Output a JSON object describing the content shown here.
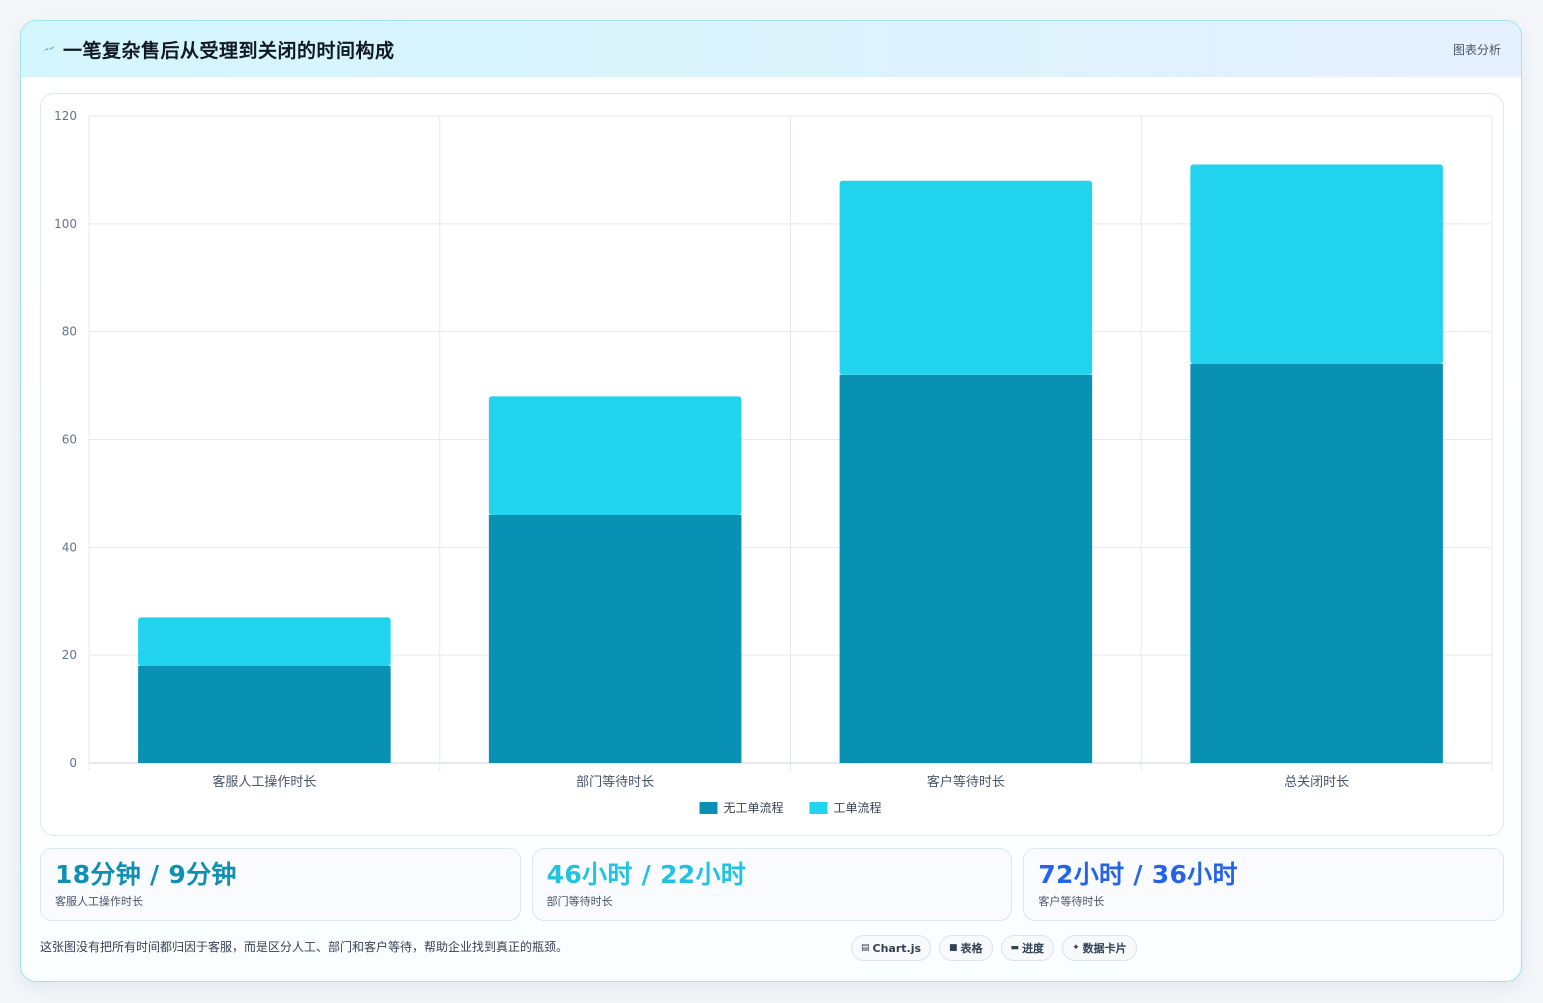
{
  "header": {
    "title": "一笔复杂售后从受理到关闭的时间构成",
    "tag": "图表分析"
  },
  "colors": {
    "series_dark": "#0891b2",
    "series_light": "#22d3ee",
    "stat1": "#0e8fb3",
    "stat2": "#22c3e0",
    "stat3": "#2563eb"
  },
  "chart_data": {
    "type": "bar",
    "stacked": true,
    "categories": [
      "客服人工操作时长",
      "部门等待时长",
      "客户等待时长",
      "总关闭时长"
    ],
    "series": [
      {
        "name": "无工单流程",
        "values": [
          18,
          46,
          72,
          74
        ]
      },
      {
        "name": "工单流程",
        "values": [
          9,
          22,
          36,
          37
        ]
      }
    ],
    "ylim": [
      0,
      120
    ],
    "yticks": [
      0,
      20,
      40,
      60,
      80,
      100,
      120
    ],
    "grid": true,
    "legend": "bottom",
    "title": "",
    "xlabel": "",
    "ylabel": ""
  },
  "stats": [
    {
      "value": "18分钟 / 9分钟",
      "label": "客服人工操作时长"
    },
    {
      "value": "46小时 / 22小时",
      "label": "部门等待时长"
    },
    {
      "value": "72小时 / 36小时",
      "label": "客户等待时长"
    }
  ],
  "footer": {
    "note": "这张图没有把所有时间都归因于客服，而是区分人工、部门和客户等待，帮助企业找到真正的瓶颈。"
  },
  "chips": [
    {
      "icon": "chart-icon",
      "label": "Chart.js"
    },
    {
      "icon": "table-icon",
      "label": "表格"
    },
    {
      "icon": "progress-icon",
      "label": "进度"
    },
    {
      "icon": "card-icon",
      "label": "数据卡片"
    }
  ]
}
